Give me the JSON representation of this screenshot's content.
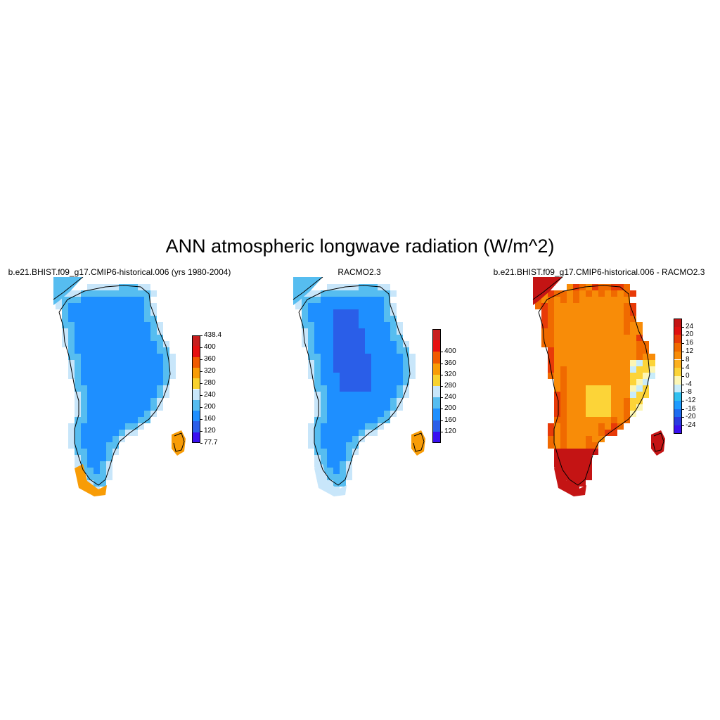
{
  "title": "ANN atmospheric longwave radiation (W/m^2)",
  "panels": [
    {
      "id": "model",
      "title": "b.e21.BHIST.f09_g17.CMIP6-historical.006 (yrs 1980-2004)",
      "colorbar": {
        "colors": [
          "#3a10f0",
          "#2a5ee8",
          "#1e8fff",
          "#56bdf0",
          "#c8e6fa",
          "#f8d22e",
          "#f89c06",
          "#f05a00",
          "#e61010",
          "#c81e1e"
        ],
        "labels": [
          "77.7",
          "120",
          "160",
          "200",
          "240",
          "280",
          "320",
          "360",
          "400",
          "438.4"
        ]
      },
      "field_range": [
        77.7,
        438.4
      ],
      "interior_value": 180,
      "coastal_value": 215,
      "edge_value": 250,
      "outlier_value": 300
    },
    {
      "id": "obs",
      "title": "RACMO2.3",
      "colorbar": {
        "colors": [
          "#3a10f0",
          "#2a5ee8",
          "#1e8fff",
          "#56bdf0",
          "#c8e6fa",
          "#f8d22e",
          "#f89c06",
          "#f05a00",
          "#e61010",
          "#c81e1e"
        ],
        "labels": [
          "120",
          "160",
          "200",
          "240",
          "280",
          "320",
          "360",
          "400"
        ]
      },
      "field_range": [
        80,
        440
      ],
      "interior_value": 180,
      "core_value": 150,
      "coastal_value": 215,
      "edge_value": 250,
      "outlier_value": 300
    },
    {
      "id": "diff",
      "title": "b.e21.BHIST.f09_g17.CMIP6-historical.006 - RACMO2.3",
      "colorbar": {
        "colors": [
          "#3a10f0",
          "#2a3ae0",
          "#1e6cf0",
          "#1e9bff",
          "#30c0f0",
          "#c8ecfa",
          "#fcf6b4",
          "#fcd438",
          "#fcb020",
          "#f88c08",
          "#f06a00",
          "#e83a08",
          "#e01010",
          "#c41414"
        ],
        "labels": [
          "-24",
          "-20",
          "-16",
          "-12",
          "-8",
          "-4",
          "0",
          "4",
          "8",
          "12",
          "16",
          "20",
          "24"
        ]
      },
      "field_range": [
        -28,
        28
      ],
      "interior_value": 6,
      "coastal_value": 12,
      "south_value": 24,
      "east_value": -8
    }
  ]
}
